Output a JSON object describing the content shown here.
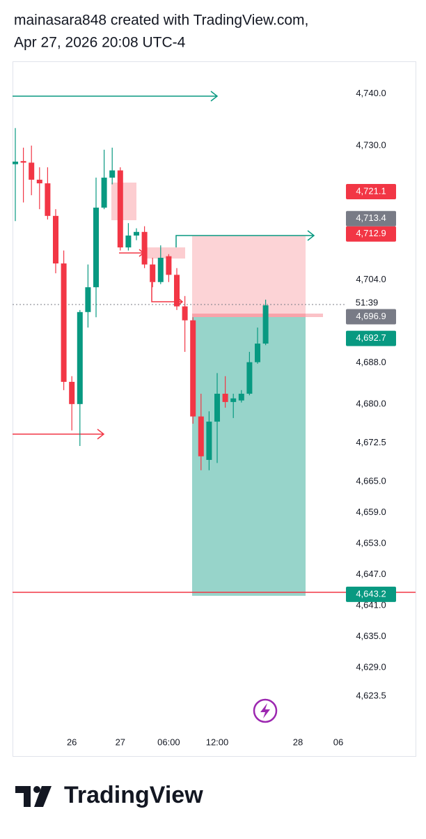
{
  "header": {
    "line1": "mainasara848 created with TradingView.com,",
    "line2": "Apr 27, 2026 20:08 UTC-4"
  },
  "footer": {
    "logo_text": "TradingView"
  },
  "chart_data": {
    "type": "candlestick",
    "categories": [
      null,
      null,
      null,
      null,
      null,
      null,
      null,
      "26",
      null,
      null,
      null,
      null,
      null,
      "27",
      null,
      null,
      null,
      null,
      null,
      "06:00",
      null,
      null,
      null,
      null,
      null,
      "12:00",
      null,
      null,
      null,
      null,
      null,
      null,
      null,
      null,
      null,
      "28",
      null,
      null,
      null,
      null,
      "06"
    ],
    "open": [
      4726.4,
      4727.0,
      4726.7,
      4723.4,
      4722.7,
      4716.4,
      4707.2,
      4684.3,
      4680.0,
      4697.8,
      4702.6,
      4718.0,
      4723.8,
      4725.2,
      4710.3,
      4712.6,
      4713.3,
      4707.0,
      4703.6,
      4708.6,
      4705.0,
      4698.9,
      4696.2,
      4677.6,
      4669.2,
      4676.6,
      4682.0,
      4680.4,
      4680.7,
      4682.0,
      4688.1,
      4691.7,
      null,
      null,
      null,
      null,
      null,
      null,
      null,
      null,
      null
    ],
    "high": [
      4733.4,
      4729.6,
      4730.0,
      4725.8,
      4725.8,
      4717.7,
      4709.7,
      4685.4,
      4698.2,
      4707.0,
      4723.8,
      4729.2,
      4729.6,
      4725.8,
      4715.0,
      4714.0,
      4714.4,
      4708.3,
      4710.7,
      4709.0,
      4706.3,
      4700.9,
      4696.8,
      4682.0,
      4678.6,
      4686.0,
      4685.4,
      4682.0,
      4682.7,
      4690.1,
      4694.8,
      4700.2,
      null,
      null,
      null,
      null,
      null,
      null,
      null,
      null,
      null
    ],
    "low": [
      4715.4,
      4719.0,
      4720.4,
      4717.7,
      4715.7,
      4705.3,
      4682.7,
      4674.9,
      4671.9,
      4694.8,
      4696.8,
      4717.7,
      4722.5,
      4709.7,
      4709.7,
      4711.7,
      4706.3,
      4702.6,
      4703.2,
      4703.6,
      4698.2,
      4690.1,
      4676.2,
      4667.2,
      4667.2,
      4668.6,
      4679.3,
      4677.3,
      4680.3,
      4681.7,
      4687.8,
      4691.4,
      null,
      null,
      null,
      null,
      null,
      null,
      null,
      null,
      null
    ],
    "close": [
      4726.9,
      4726.7,
      4723.4,
      4722.7,
      4716.4,
      4707.2,
      4684.3,
      4680.0,
      4697.8,
      4702.6,
      4718.0,
      4723.8,
      4725.2,
      4710.3,
      4712.6,
      4713.3,
      4707.0,
      4703.6,
      4708.3,
      4705.0,
      4698.9,
      4696.2,
      4677.6,
      4669.9,
      4676.6,
      4682.0,
      4680.4,
      4681.1,
      4682.0,
      4688.1,
      4691.7,
      4699.1,
      null,
      null,
      null,
      null,
      null,
      null,
      null,
      null,
      null
    ],
    "up_color": "#089981",
    "down_color": "#f23645",
    "ylim": [
      4617.3,
      4746.3
    ],
    "yticks": [
      {
        "value": 4740,
        "label": "4,740.0"
      },
      {
        "value": 4730,
        "label": "4,730.0"
      },
      {
        "value": 4704,
        "label": "4,704.0"
      },
      {
        "value": 4688,
        "label": "4,688.0"
      },
      {
        "value": 4680,
        "label": "4,680.0"
      },
      {
        "value": 4672.5,
        "label": "4,672.5"
      },
      {
        "value": 4665,
        "label": "4,665.0"
      },
      {
        "value": 4659,
        "label": "4,659.0"
      },
      {
        "value": 4653,
        "label": "4,653.0"
      },
      {
        "value": 4647,
        "label": "4,647.0"
      },
      {
        "value": 4641,
        "label": "4,641.0"
      },
      {
        "value": 4635,
        "label": "4,635.0"
      },
      {
        "value": 4629,
        "label": "4,629.0"
      },
      {
        "value": 4623.5,
        "label": "4,623.5"
      }
    ],
    "price_labels": [
      {
        "value": 4721.1,
        "label": "4,721.1",
        "color": "#f23645"
      },
      {
        "value": 4713.4,
        "label": "4,713.4",
        "color": "#787b86"
      },
      {
        "value": 4712.9,
        "label": "4,712.9",
        "color": "#f23645"
      },
      {
        "value": 4696.9,
        "label": "4,696.9",
        "color": "#787b86"
      },
      {
        "value": 4692.7,
        "label": "4,692.7",
        "color": "#089981"
      },
      {
        "value": 4643.2,
        "label": "4,643.2",
        "color": "#089981"
      }
    ],
    "countdown": "51:39"
  }
}
